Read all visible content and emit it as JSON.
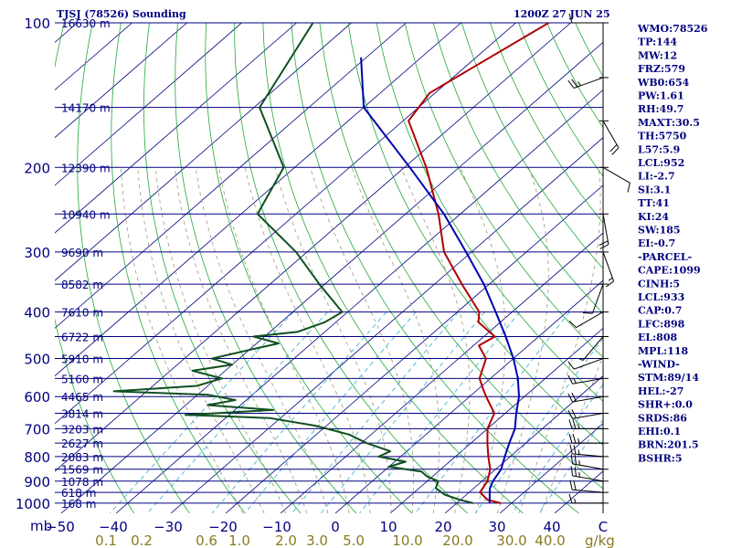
{
  "chart_data": {
    "type": "line",
    "title": "TJSJ (78526) Sounding",
    "valid_time": "1200Z 27 JUN 25",
    "pressure_unit_label": "mb",
    "mixing_ratio_unit_label": "g/kg",
    "pressure_ticks": [
      "100",
      "200",
      "300",
      "400",
      "500",
      "600",
      "700",
      "800",
      "900",
      "1000"
    ],
    "temperature_ticks": [
      "−50",
      "−40",
      "−30",
      "−20",
      "−10",
      "0",
      "10",
      "20",
      "30",
      "40",
      "C"
    ],
    "mixing_ratio_ticks": [
      "0.1",
      "0.2",
      "0.6",
      "1.0",
      "2.0",
      "3.0",
      "5.0",
      "10.0",
      "20.0",
      "30.0",
      "40.0"
    ],
    "height_labels": [
      {
        "p": 100,
        "text": "16630 m"
      },
      {
        "p": 150,
        "text": "14170 m"
      },
      {
        "p": 200,
        "text": "12390 m"
      },
      {
        "p": 250,
        "text": "10940 m"
      },
      {
        "p": 300,
        "text": "9690 m"
      },
      {
        "p": 350,
        "text": "8582 m"
      },
      {
        "p": 400,
        "text": "7610 m"
      },
      {
        "p": 450,
        "text": "6722 m"
      },
      {
        "p": 500,
        "text": "5910 m"
      },
      {
        "p": 550,
        "text": "5160 m"
      },
      {
        "p": 600,
        "text": "4465 m"
      },
      {
        "p": 650,
        "text": "3814 m"
      },
      {
        "p": 700,
        "text": "3203 m"
      },
      {
        "p": 750,
        "text": "2627 m"
      },
      {
        "p": 800,
        "text": "2083 m"
      },
      {
        "p": 850,
        "text": "1569 m"
      },
      {
        "p": 900,
        "text": "1078 m"
      },
      {
        "p": 950,
        "text": "618 m"
      },
      {
        "p": 1000,
        "text": "168 m"
      }
    ],
    "series": [
      {
        "color": "#b00000",
        "points": [
          [
            100,
            -64
          ],
          [
            140,
            -71
          ],
          [
            160,
            -69
          ],
          [
            200,
            -56
          ],
          [
            250,
            -44
          ],
          [
            300,
            -35
          ],
          [
            350,
            -25
          ],
          [
            400,
            -16
          ],
          [
            420,
            -14
          ],
          [
            450,
            -8
          ],
          [
            470,
            -9
          ],
          [
            500,
            -5
          ],
          [
            550,
            -2
          ],
          [
            580,
            1
          ],
          [
            600,
            3
          ],
          [
            650,
            8
          ],
          [
            700,
            10
          ],
          [
            750,
            13
          ],
          [
            800,
            16
          ],
          [
            850,
            19
          ],
          [
            900,
            21
          ],
          [
            950,
            22
          ],
          [
            985,
            25
          ],
          [
            1000,
            28
          ]
        ]
      },
      {
        "color": "#0f4f1f",
        "points": [
          [
            100,
            -107
          ],
          [
            150,
            -99
          ],
          [
            200,
            -82
          ],
          [
            250,
            -77
          ],
          [
            300,
            -62
          ],
          [
            350,
            -51
          ],
          [
            400,
            -41
          ],
          [
            420,
            -42
          ],
          [
            440,
            -45
          ],
          [
            450,
            -52
          ],
          [
            465,
            -46
          ],
          [
            480,
            -50
          ],
          [
            500,
            -55
          ],
          [
            515,
            -50
          ],
          [
            530,
            -56
          ],
          [
            550,
            -49
          ],
          [
            570,
            -52
          ],
          [
            585,
            -66
          ],
          [
            595,
            -48
          ],
          [
            610,
            -42
          ],
          [
            625,
            -46
          ],
          [
            640,
            -33
          ],
          [
            655,
            -48
          ],
          [
            665,
            -32
          ],
          [
            690,
            -22
          ],
          [
            720,
            -14
          ],
          [
            750,
            -9
          ],
          [
            780,
            -3
          ],
          [
            800,
            -4
          ],
          [
            820,
            2
          ],
          [
            840,
            0
          ],
          [
            860,
            7
          ],
          [
            880,
            9
          ],
          [
            900,
            12
          ],
          [
            930,
            13
          ],
          [
            960,
            16
          ],
          [
            985,
            20
          ],
          [
            1000,
            23
          ]
        ]
      },
      {
        "color": "#0000b0",
        "points": [
          [
            118,
            -91
          ],
          [
            150,
            -80
          ],
          [
            200,
            -59
          ],
          [
            250,
            -43
          ],
          [
            300,
            -31
          ],
          [
            350,
            -21
          ],
          [
            400,
            -13
          ],
          [
            450,
            -6
          ],
          [
            500,
            0
          ],
          [
            550,
            5
          ],
          [
            600,
            9
          ],
          [
            650,
            12
          ],
          [
            700,
            15
          ],
          [
            750,
            17
          ],
          [
            800,
            19
          ],
          [
            850,
            21
          ],
          [
            900,
            22
          ],
          [
            933,
            23
          ],
          [
            1000,
            26
          ]
        ]
      }
    ],
    "wind_barbs": [
      {
        "p": 100,
        "dir": 90,
        "kt": 10
      },
      {
        "p": 130,
        "dir": 70,
        "kt": 25
      },
      {
        "p": 160,
        "dir": 330,
        "kt": 20
      },
      {
        "p": 200,
        "dir": 300,
        "kt": 10
      },
      {
        "p": 250,
        "dir": 350,
        "kt": 20
      },
      {
        "p": 300,
        "dir": 340,
        "kt": 15
      },
      {
        "p": 350,
        "dir": 20,
        "kt": 10
      },
      {
        "p": 400,
        "dir": 60,
        "kt": 10
      },
      {
        "p": 450,
        "dir": 40,
        "kt": 5
      },
      {
        "p": 500,
        "dir": 70,
        "kt": 10
      },
      {
        "p": 550,
        "dir": 80,
        "kt": 15
      },
      {
        "p": 600,
        "dir": 80,
        "kt": 20
      },
      {
        "p": 650,
        "dir": 80,
        "kt": 20
      },
      {
        "p": 700,
        "dir": 90,
        "kt": 25
      },
      {
        "p": 750,
        "dir": 90,
        "kt": 25
      },
      {
        "p": 800,
        "dir": 95,
        "kt": 25
      },
      {
        "p": 850,
        "dir": 100,
        "kt": 25
      },
      {
        "p": 900,
        "dir": 100,
        "kt": 25
      },
      {
        "p": 950,
        "dir": 95,
        "kt": 20
      },
      {
        "p": 1000,
        "dir": 90,
        "kt": 15
      }
    ],
    "indices": [
      "WMO:78526",
      "TP:144",
      "MW:12",
      "FRZ:579",
      "WB0:654",
      "PW:1.61",
      "RH:49.7",
      "MAXT:30.5",
      "TH:5750",
      "L57:5.9",
      "LCL:952",
      "LI:-2.7",
      "SI:3.1",
      "TT:41",
      "KI:24",
      "SW:185",
      "EI:-0.7",
      "-PARCEL-",
      "CAPE:1099",
      "CINH:5",
      "LCL:933",
      "CAP:0.7",
      "LFC:898",
      "EL:808",
      "MPL:118",
      "-WIND-",
      "STM:89/14",
      "HEL:-27",
      "SHR+:0.0",
      "SRDS:86",
      "EHI:0.1",
      "BRN:201.5",
      "BSHR:5"
    ]
  }
}
